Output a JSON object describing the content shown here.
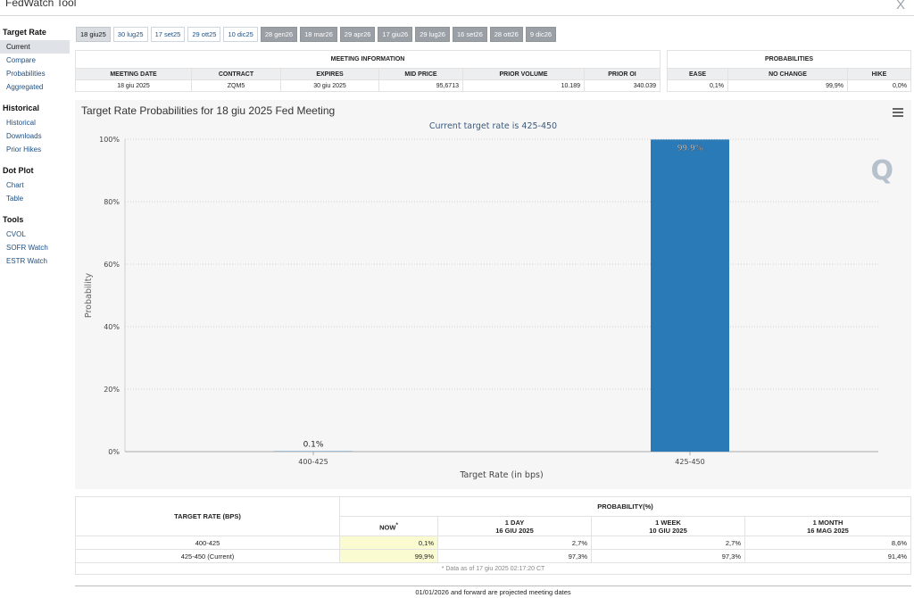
{
  "app": {
    "title": "FedWatch Tool",
    "close_glyph": "X"
  },
  "sidebar": {
    "sections": [
      {
        "title": "Target Rate",
        "items": [
          "Current",
          "Compare",
          "Probabilities",
          "Aggregated"
        ]
      },
      {
        "title": "Historical",
        "items": [
          "Historical",
          "Downloads",
          "Prior Hikes"
        ]
      },
      {
        "title": "Dot Plot",
        "items": [
          "Chart",
          "Table"
        ]
      },
      {
        "title": "Tools",
        "items": [
          "CVOL",
          "SOFR Watch",
          "ESTR Watch"
        ]
      }
    ],
    "active_item": "Current"
  },
  "meeting_tabs": [
    {
      "label": "18 giu25",
      "state": "selected"
    },
    {
      "label": "30 lug25",
      "state": "normal"
    },
    {
      "label": "17 set25",
      "state": "normal"
    },
    {
      "label": "29 ott25",
      "state": "normal"
    },
    {
      "label": "10 dic25",
      "state": "normal"
    },
    {
      "label": "28 gen26",
      "state": "projected"
    },
    {
      "label": "18 mar26",
      "state": "projected"
    },
    {
      "label": "29 apr26",
      "state": "projected"
    },
    {
      "label": "17 giu26",
      "state": "projected"
    },
    {
      "label": "29 lug26",
      "state": "projected"
    },
    {
      "label": "16 set26",
      "state": "projected"
    },
    {
      "label": "28 ott26",
      "state": "projected"
    },
    {
      "label": "9 dic26",
      "state": "projected"
    }
  ],
  "meeting_info": {
    "caption": "MEETING INFORMATION",
    "headers": [
      "MEETING DATE",
      "CONTRACT",
      "EXPIRES",
      "MID PRICE",
      "PRIOR VOLUME",
      "PRIOR OI"
    ],
    "values": [
      "18 giu 2025",
      "ZQM5",
      "30 giu 2025",
      "95,6713",
      "10.189",
      "340.039"
    ]
  },
  "probabilities_info": {
    "caption": "PROBABILITIES",
    "headers": [
      "EASE",
      "NO CHANGE",
      "HIKE"
    ],
    "values": [
      "0,1%",
      "99,9%",
      "0,0%"
    ]
  },
  "chart": {
    "heading": "Target Rate Probabilities for 18 giu 2025 Fed Meeting",
    "menu_icon": "hamburger-menu-icon",
    "watermark": "Q"
  },
  "chart_data": {
    "type": "bar",
    "title": "Target Rate Probabilities for 18 giu 2025 Fed Meeting",
    "subtitle": "Current target rate is 425-450",
    "xlabel": "Target Rate (in bps)",
    "ylabel": "Probability",
    "categories": [
      "400-425",
      "425-450"
    ],
    "values": [
      0.1,
      99.9
    ],
    "data_labels": [
      "0.1%",
      "99.9%"
    ],
    "ylim": [
      0,
      100
    ],
    "yticks": [
      "0%",
      "20%",
      "40%",
      "60%",
      "80%",
      "100%"
    ],
    "ytick_values": [
      0,
      20,
      40,
      60,
      80,
      100
    ],
    "grid": true,
    "bar_color": "#2a7ab8"
  },
  "prob_table": {
    "col_target": "TARGET RATE (BPS)",
    "col_group": "PROBABILITY(%)",
    "col_now": "NOW",
    "now_marker": "*",
    "col_1day": "1 DAY",
    "col_1day_date": "16 GIU 2025",
    "col_1week": "1 WEEK",
    "col_1week_date": "10 GIU 2025",
    "col_1month": "1 MONTH",
    "col_1month_date": "16 MAG 2025",
    "rows": [
      {
        "rate": "400-425",
        "now": "0,1%",
        "day": "2,7%",
        "week": "2,7%",
        "month": "8,6%"
      },
      {
        "rate": "425-450 (Current)",
        "now": "99,9%",
        "day": "97,3%",
        "week": "97,3%",
        "month": "91,4%"
      }
    ],
    "note": "* Data as of 17 giu 2025 02:17:20 CT"
  },
  "footer": {
    "note": "01/01/2026 and forward are projected meeting dates"
  },
  "colors": {
    "bar": "#2a7ab8",
    "now_highlight": "#fbfbd2",
    "projected_tab": "#9aa0a6"
  }
}
